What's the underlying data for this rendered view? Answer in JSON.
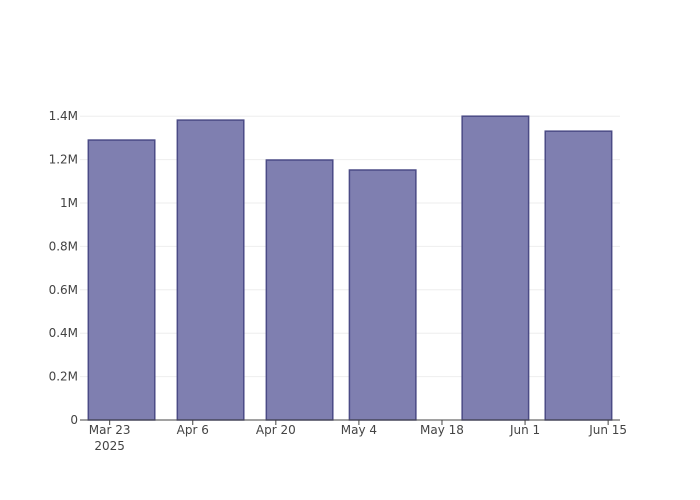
{
  "chart_data": {
    "type": "bar",
    "x": [
      "2025-03-25",
      "2025-04-09",
      "2025-04-24",
      "2025-05-08",
      "2025-05-27",
      "2025-06-10"
    ],
    "values": [
      1290000,
      1382000,
      1198000,
      1152000,
      1400000,
      1331000
    ],
    "color": "#7f7fb0",
    "line_color": "#4b4b86",
    "xlim": [
      "2025-03-18",
      "2025-06-17"
    ],
    "xticks": [
      {
        "value": "2025-03-23",
        "label": "Mar 23"
      },
      {
        "value": "2025-04-06",
        "label": "Apr 6"
      },
      {
        "value": "2025-04-20",
        "label": "Apr 20"
      },
      {
        "value": "2025-05-04",
        "label": "May 4"
      },
      {
        "value": "2025-05-18",
        "label": "May 18"
      },
      {
        "value": "2025-06-01",
        "label": "Jun 1"
      },
      {
        "value": "2025-06-15",
        "label": "Jun 15"
      }
    ],
    "x_year_label": "2025",
    "ylim": [
      0,
      1470000
    ],
    "yticks": [
      0,
      {
        "value": 200000,
        "label": "0.2M"
      },
      {
        "value": 400000,
        "label": "0.4M"
      },
      {
        "value": 600000,
        "label": "0.6M"
      },
      {
        "value": 800000,
        "label": "0.8M"
      },
      {
        "value": 1000000,
        "label": "1M"
      },
      {
        "value": 1200000,
        "label": "1.2M"
      },
      {
        "value": 1400000,
        "label": "1.4M"
      }
    ],
    "grid": true
  }
}
